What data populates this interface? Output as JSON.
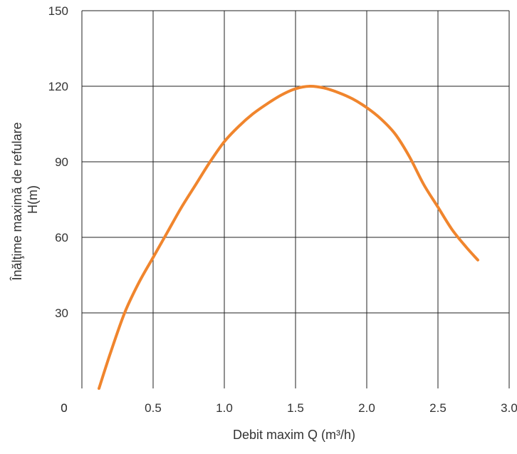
{
  "chart_data": {
    "type": "line",
    "title": "",
    "xlabel": "Debit maxim Q (m³/h)",
    "ylabel": [
      "Înălţime maximă de refulare",
      "H(m)"
    ],
    "xlim": [
      0,
      3.0
    ],
    "ylim": [
      0,
      150
    ],
    "x_ticks": [
      "0",
      "0.5",
      "1.0",
      "1.5",
      "2.0",
      "2.5",
      "3.0"
    ],
    "y_ticks": [
      "0",
      "30",
      "60",
      "90",
      "120",
      "150"
    ],
    "grid": true,
    "colors": {
      "curve": "#f0852d",
      "grid": "#222222"
    },
    "series": [
      {
        "x": [
          0.12,
          0.2,
          0.3,
          0.4,
          0.5,
          0.6,
          0.7,
          0.8,
          0.9,
          1.0,
          1.1,
          1.2,
          1.3,
          1.4,
          1.5,
          1.6,
          1.7,
          1.8,
          1.9,
          2.0,
          2.1,
          2.2,
          2.3,
          2.4,
          2.5,
          2.6,
          2.7,
          2.78
        ],
        "y": [
          0,
          14,
          30,
          42,
          52,
          62,
          72,
          81,
          90,
          98,
          104,
          109,
          113,
          116.5,
          119,
          120,
          119.3,
          117.5,
          115,
          111.5,
          107,
          101,
          92,
          81,
          72,
          63,
          56,
          51
        ]
      }
    ]
  }
}
